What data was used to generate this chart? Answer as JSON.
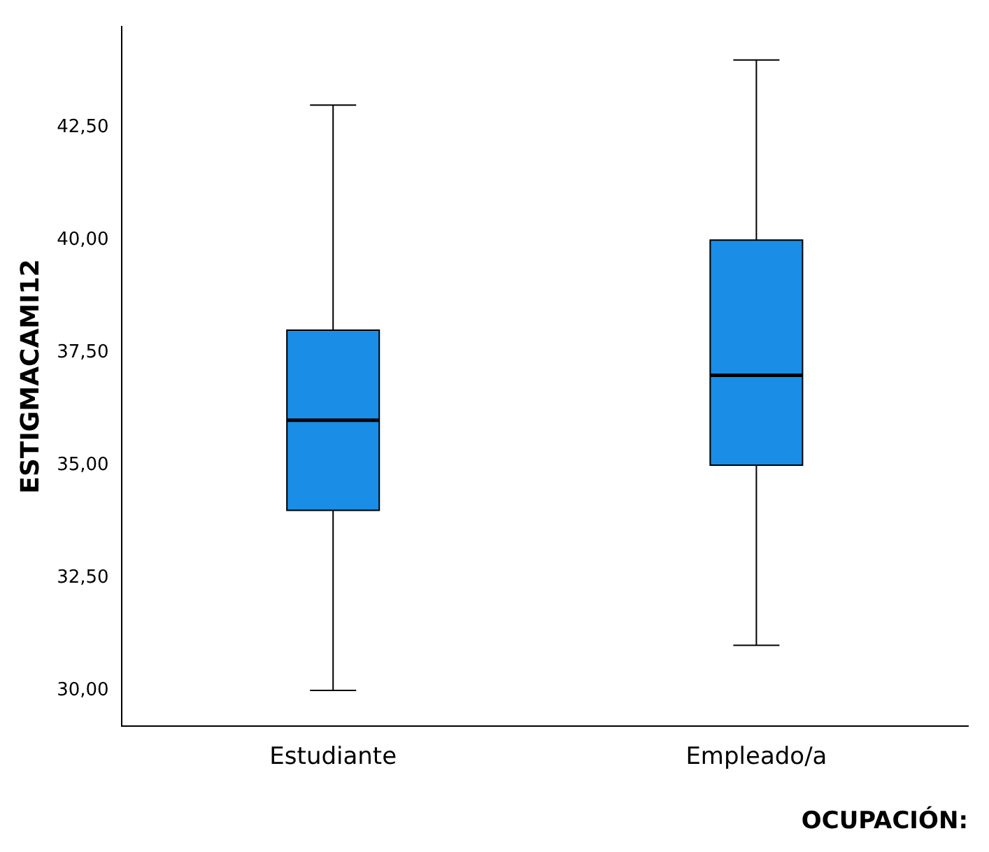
{
  "chart_data": {
    "type": "box",
    "categories": [
      "Estudiante",
      "Empleado/a"
    ],
    "xlabel": "OCUPACIÓN:",
    "ylabel": "ESTIGMACAMI12",
    "color": "#1a8ee6",
    "boxes": [
      {
        "low": 30,
        "q1": 34,
        "median": 36,
        "q3": 38,
        "high": 43
      },
      {
        "low": 31,
        "q1": 35,
        "median": 37,
        "q3": 40,
        "high": 44
      }
    ],
    "ylim": [
      29.2,
      44.75
    ],
    "yticks": [
      {
        "value": 30,
        "label": "30,00"
      },
      {
        "value": 32.5,
        "label": "32,50"
      },
      {
        "value": 35,
        "label": "35,00"
      },
      {
        "value": 37.5,
        "label": "37,50"
      },
      {
        "value": 40,
        "label": "40,00"
      },
      {
        "value": 42.5,
        "label": "42,50"
      }
    ],
    "grid": false
  }
}
